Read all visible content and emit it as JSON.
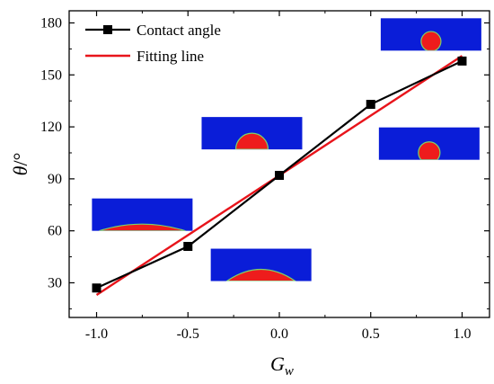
{
  "chart_data": {
    "type": "line",
    "x": [
      -1.0,
      -0.5,
      0.0,
      0.5,
      1.0
    ],
    "series": [
      {
        "name": "Contact angle",
        "values": [
          27,
          51,
          92,
          133,
          158
        ],
        "color": "#000000",
        "marker": "square"
      },
      {
        "name": "Fitting line",
        "x": [
          -1.0,
          1.0
        ],
        "values": [
          23,
          161
        ],
        "color": "#e8141b",
        "marker": "none"
      }
    ],
    "xlabel": {
      "main": "G",
      "sub": "w"
    },
    "ylabel": {
      "main": "θ",
      "unit": "/°"
    },
    "xlim": [
      -1.15,
      1.15
    ],
    "ylim": [
      10,
      187
    ],
    "xticks": [
      "-1.0",
      "-0.5",
      "0.0",
      "0.5",
      "1.0"
    ],
    "xtick_values": [
      -1.0,
      -0.5,
      0.0,
      0.5,
      1.0
    ],
    "yticks": [
      "30",
      "60",
      "90",
      "120",
      "150",
      "180"
    ],
    "ytick_values": [
      30,
      60,
      90,
      120,
      150,
      180
    ],
    "grid": false,
    "legend": "top-left",
    "insets": [
      {
        "x": -0.75,
        "y": 60,
        "shape": "flat-cap"
      },
      {
        "x": -0.1,
        "y": 31,
        "shape": "low-cap"
      },
      {
        "x": -0.15,
        "y": 107,
        "shape": "half-disk"
      },
      {
        "x": 0.82,
        "y": 101,
        "shape": "mostly-round"
      },
      {
        "x": 0.83,
        "y": 164,
        "shape": "near-circle"
      }
    ],
    "inset_colors": {
      "background": "#0a1dd8",
      "drop": "#ee1c1c",
      "rim": "#7bd36a"
    }
  }
}
